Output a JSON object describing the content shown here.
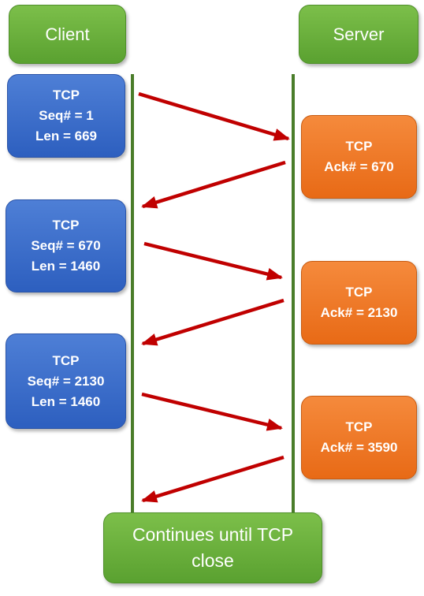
{
  "client_label": "Client",
  "server_label": "Server",
  "client_packets": [
    {
      "protocol": "TCP",
      "seq": "Seq# = 1",
      "len": "Len = 669"
    },
    {
      "protocol": "TCP",
      "seq": "Seq# = 670",
      "len": "Len = 1460"
    },
    {
      "protocol": "TCP",
      "seq": "Seq# = 2130",
      "len": "Len = 1460"
    }
  ],
  "server_packets": [
    {
      "protocol": "TCP",
      "ack": "Ack# = 670"
    },
    {
      "protocol": "TCP",
      "ack": "Ack# = 2130"
    },
    {
      "protocol": "TCP",
      "ack": "Ack# = 3590"
    }
  ],
  "footer": {
    "line1": "Continues until TCP",
    "line2": "close"
  },
  "colors": {
    "header_green": "#6fb23e",
    "client_blue": "#3a6dcc",
    "server_orange": "#f07a24",
    "arrow_red": "#c00000",
    "lifeline_green": "#4a7d2a"
  }
}
